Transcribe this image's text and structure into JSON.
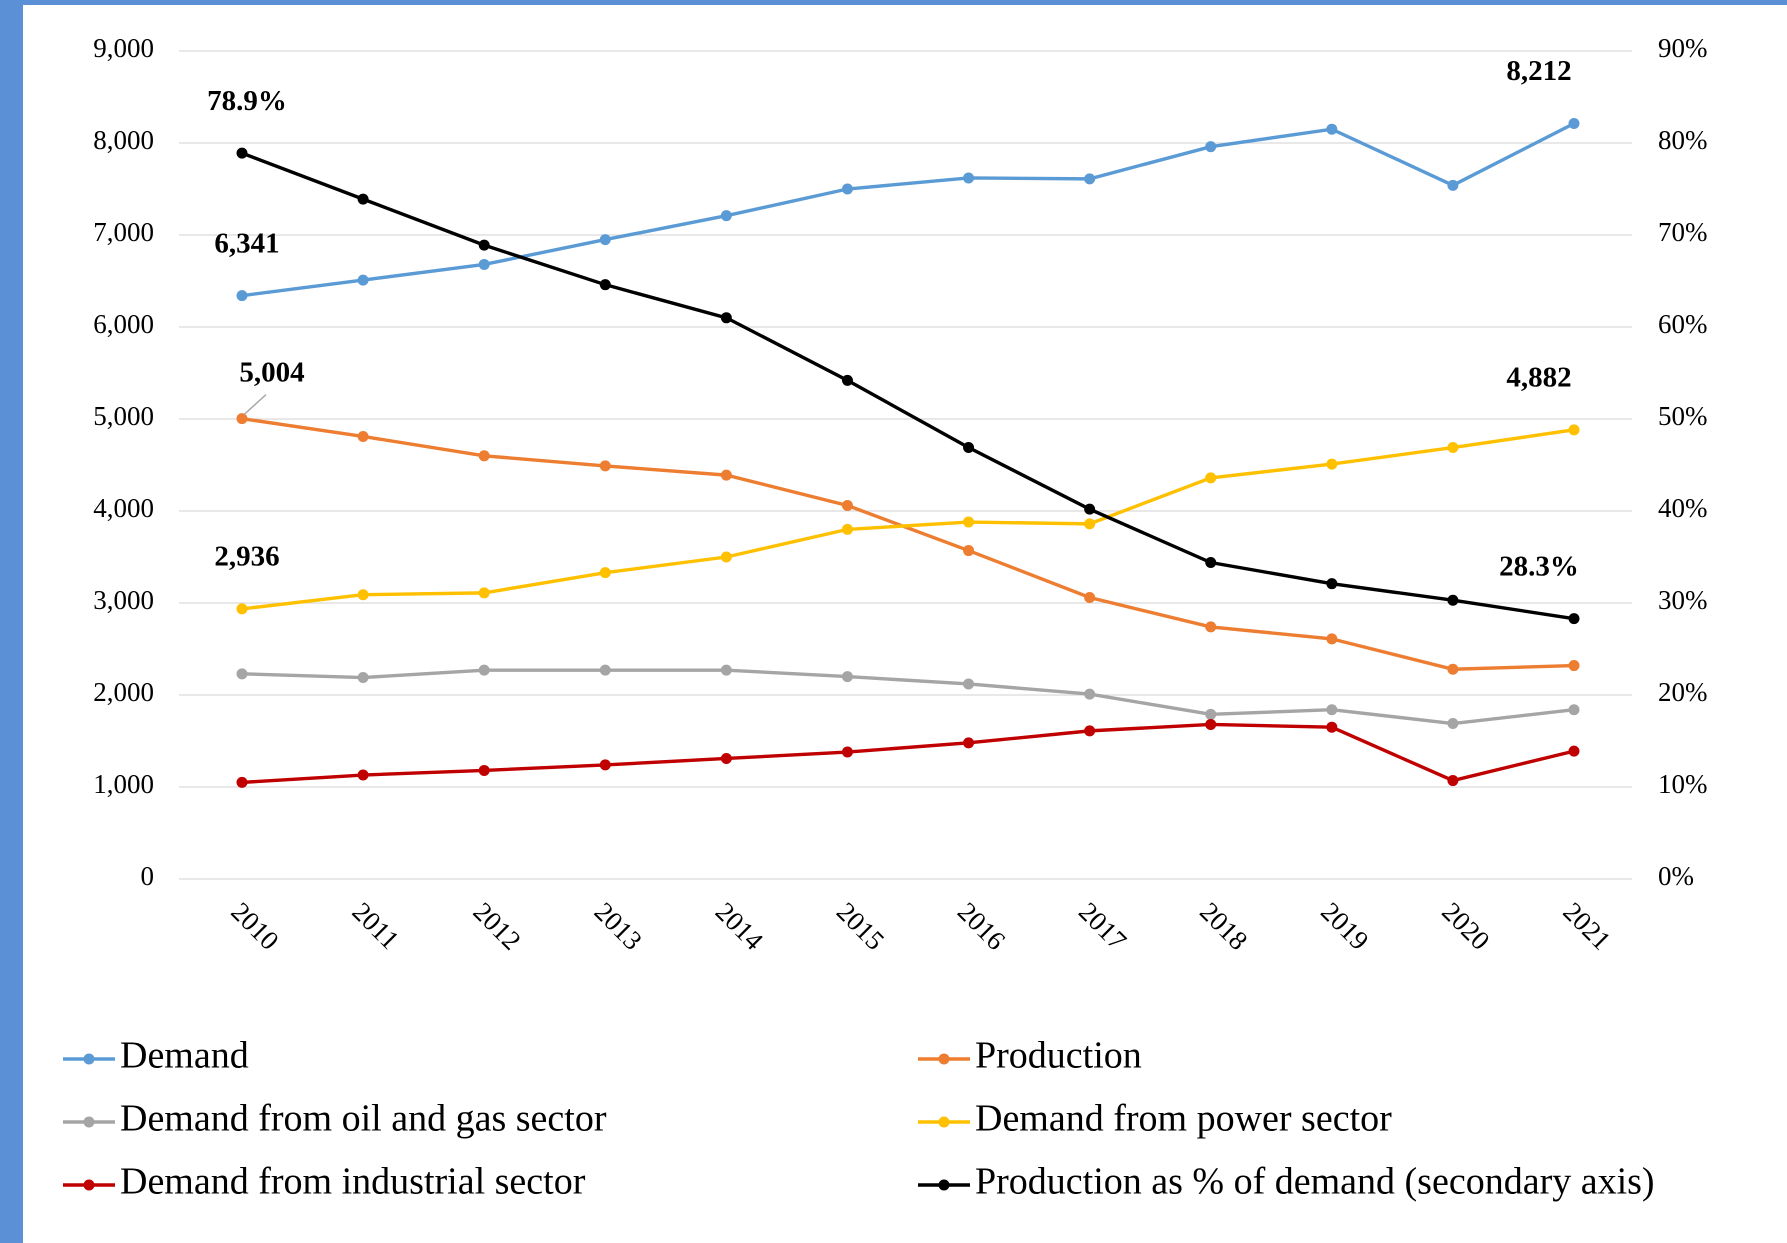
{
  "chart_data": {
    "type": "line",
    "categories": [
      "2010",
      "2011",
      "2012",
      "2013",
      "2014",
      "2015",
      "2016",
      "2017",
      "2018",
      "2019",
      "2020",
      "2021"
    ],
    "ylim": [
      0,
      9000
    ],
    "yticks": [
      0,
      {
        "value": 1000,
        "label": "1,000"
      },
      {
        "value": 2000,
        "label": "2,000"
      },
      {
        "value": 3000,
        "label": "3,000"
      },
      {
        "value": 4000,
        "label": "4,000"
      },
      {
        "value": 5000,
        "label": "5,000"
      },
      {
        "value": 6000,
        "label": "6,000"
      },
      {
        "value": 7000,
        "label": "7,000"
      },
      {
        "value": 8000,
        "label": "8,000"
      },
      {
        "value": 9000,
        "label": "9,000"
      }
    ],
    "y2lim": [
      0,
      90
    ],
    "y2ticks": [
      {
        "value": 0,
        "label": "0%"
      },
      {
        "value": 10,
        "label": "10%"
      },
      {
        "value": 20,
        "label": "20%"
      },
      {
        "value": 30,
        "label": "30%"
      },
      {
        "value": 40,
        "label": "40%"
      },
      {
        "value": 50,
        "label": "50%"
      },
      {
        "value": 60,
        "label": "60%"
      },
      {
        "value": 70,
        "label": "70%"
      },
      {
        "value": 80,
        "label": "80%"
      },
      {
        "value": 90,
        "label": "90%"
      }
    ],
    "grid": true,
    "legend": "bottom",
    "series": [
      {
        "name": "Demand",
        "color": "#5b9bd5",
        "values": [
          6341,
          6510,
          6680,
          6950,
          7210,
          7500,
          7620,
          7610,
          7960,
          8150,
          7540,
          8212
        ],
        "value_labels": [
          "6,341",
          null,
          null,
          null,
          null,
          null,
          null,
          null,
          null,
          null,
          null,
          "8,212"
        ]
      },
      {
        "name": "Production",
        "color": "#ed7d31",
        "values": [
          5004,
          4810,
          4600,
          4490,
          4390,
          4060,
          3570,
          3060,
          2740,
          2610,
          2280,
          2320
        ],
        "value_labels": [
          "5,004",
          null,
          null,
          null,
          null,
          null,
          null,
          null,
          null,
          null,
          null,
          null
        ]
      },
      {
        "name": "Demand from oil and gas sector",
        "color": "#a5a5a5",
        "values": [
          2230,
          2190,
          2270,
          2270,
          2270,
          2200,
          2120,
          2010,
          1790,
          1840,
          1690,
          1840
        ]
      },
      {
        "name": "Demand from power sector",
        "color": "#ffc000",
        "values": [
          2936,
          3090,
          3110,
          3330,
          3500,
          3800,
          3880,
          3860,
          4360,
          4510,
          4690,
          4882
        ],
        "value_labels": [
          "2,936",
          null,
          null,
          null,
          null,
          null,
          null,
          null,
          null,
          null,
          null,
          "4,882"
        ]
      },
      {
        "name": "Demand from industrial sector",
        "color": "#c00000",
        "values": [
          1050,
          1130,
          1180,
          1240,
          1310,
          1380,
          1480,
          1610,
          1680,
          1650,
          1070,
          1390
        ]
      },
      {
        "name": "Production as % of demand (secondary axis)",
        "color": "#000000",
        "axis": "y2",
        "values": [
          78.9,
          73.9,
          68.9,
          64.6,
          61.0,
          54.2,
          46.9,
          40.2,
          34.4,
          32.1,
          30.3,
          28.3
        ],
        "value_labels": [
          "78.9%",
          null,
          null,
          null,
          null,
          null,
          null,
          null,
          null,
          null,
          null,
          "28.3%"
        ]
      }
    ]
  }
}
